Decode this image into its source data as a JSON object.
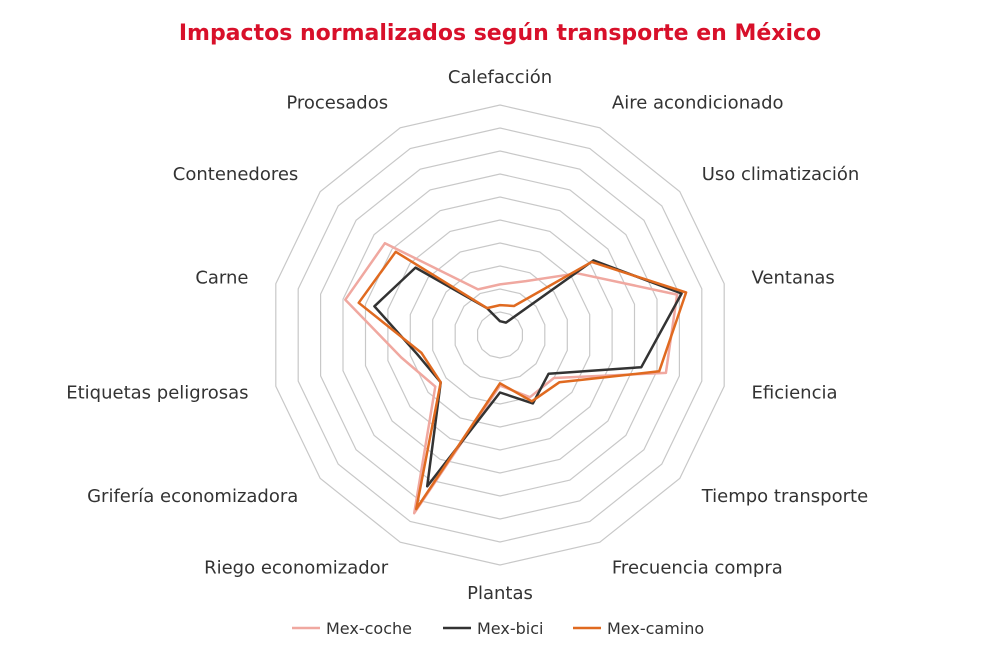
{
  "chart_data": {
    "type": "radar",
    "title": "Impactos normalizados según transporte en México",
    "categories": [
      "Calefacción",
      "Aire acondicionado",
      "Uso climatización",
      "Ventanas",
      "Eficiencia",
      "Tiempo transporte",
      "Frecuencia compra",
      "Plantas",
      "Riego economizador",
      "Grifería economizadora",
      "Etiquetas peligrosas",
      "Carne",
      "Contenedores",
      "Procesados"
    ],
    "rlim": [
      0,
      10
    ],
    "rings": 10,
    "grid": true,
    "legend_position": "bottom",
    "series": [
      {
        "name": "Mex-coche",
        "color": "#f0a8a0",
        "values": [
          2.2,
          2.6,
          4.3,
          7.9,
          7.4,
          3.0,
          3.0,
          2.2,
          8.6,
          3.6,
          4.4,
          6.9,
          6.4,
          2.2
        ]
      },
      {
        "name": "Mex-bici",
        "color": "#333333",
        "values": [
          0.6,
          0.6,
          5.2,
          8.1,
          6.3,
          2.7,
          3.3,
          2.5,
          7.3,
          3.3,
          3.7,
          5.6,
          4.7,
          1.3
        ]
      },
      {
        "name": "Mex-camino",
        "color": "#e06a20",
        "values": [
          1.3,
          1.4,
          5.1,
          8.3,
          7.1,
          3.3,
          3.2,
          2.1,
          8.4,
          3.3,
          3.5,
          6.3,
          5.8,
          1.3
        ]
      }
    ]
  }
}
